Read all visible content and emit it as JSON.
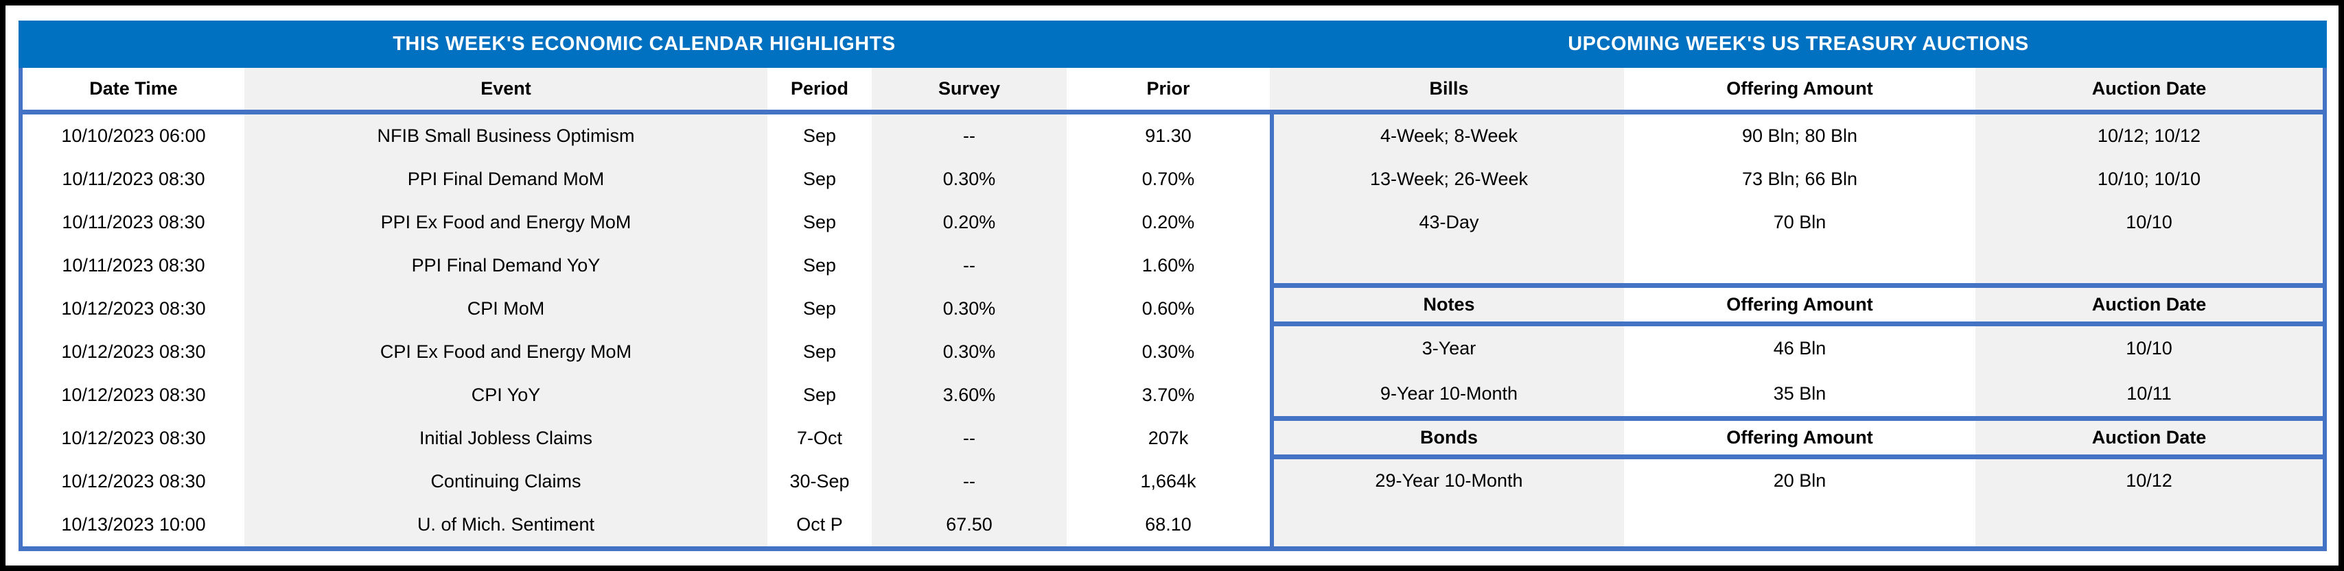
{
  "colors": {
    "title_bar_blue": "#0070C0",
    "accent_border_blue": "#4472C4",
    "alt_column_gray": "#F1F1F1",
    "text_black": "#000000",
    "title_text_white": "#FFFFFF"
  },
  "calendar": {
    "title": "THIS WEEK'S ECONOMIC CALENDAR HIGHLIGHTS",
    "columns": [
      "Date Time",
      "Event",
      "Period",
      "Survey",
      "Prior"
    ],
    "rows": [
      {
        "date": "10/10/2023 06:00",
        "event": "NFIB Small Business Optimism",
        "period": "Sep",
        "survey": "--",
        "prior": "91.30"
      },
      {
        "date": "10/11/2023 08:30",
        "event": "PPI Final Demand MoM",
        "period": "Sep",
        "survey": "0.30%",
        "prior": "0.70%"
      },
      {
        "date": "10/11/2023 08:30",
        "event": "PPI Ex Food and Energy MoM",
        "period": "Sep",
        "survey": "0.20%",
        "prior": "0.20%"
      },
      {
        "date": "10/11/2023 08:30",
        "event": "PPI Final Demand YoY",
        "period": "Sep",
        "survey": "--",
        "prior": "1.60%"
      },
      {
        "date": "10/12/2023 08:30",
        "event": "CPI MoM",
        "period": "Sep",
        "survey": "0.30%",
        "prior": "0.60%"
      },
      {
        "date": "10/12/2023 08:30",
        "event": "CPI Ex Food and Energy MoM",
        "period": "Sep",
        "survey": "0.30%",
        "prior": "0.30%"
      },
      {
        "date": "10/12/2023 08:30",
        "event": "CPI YoY",
        "period": "Sep",
        "survey": "3.60%",
        "prior": "3.70%"
      },
      {
        "date": "10/12/2023 08:30",
        "event": "Initial Jobless Claims",
        "period": "7-Oct",
        "survey": "--",
        "prior": "207k"
      },
      {
        "date": "10/12/2023 08:30",
        "event": "Continuing Claims",
        "period": "30-Sep",
        "survey": "--",
        "prior": "1,664k"
      },
      {
        "date": "10/13/2023 10:00",
        "event": "U. of Mich. Sentiment",
        "period": "Oct P",
        "survey": "67.50",
        "prior": "68.10"
      }
    ]
  },
  "auctions": {
    "title": "UPCOMING WEEK'S US TREASURY AUCTIONS",
    "bills": {
      "header": [
        "Bills",
        "Offering Amount",
        "Auction Date"
      ],
      "rows": [
        {
          "security": "4-Week; 8-Week",
          "amount": "90 Bln; 80 Bln",
          "date": "10/12; 10/12"
        },
        {
          "security": "13-Week; 26-Week",
          "amount": "73 Bln; 66 Bln",
          "date": "10/10; 10/10"
        },
        {
          "security": "43-Day",
          "amount": "70 Bln",
          "date": "10/10"
        }
      ]
    },
    "notes": {
      "header": [
        "Notes",
        "Offering Amount",
        "Auction Date"
      ],
      "rows": [
        {
          "security": "3-Year",
          "amount": "46 Bln",
          "date": "10/10"
        },
        {
          "security": "9-Year 10-Month",
          "amount": "35 Bln",
          "date": "10/11"
        }
      ]
    },
    "bonds": {
      "header": [
        "Bonds",
        "Offering Amount",
        "Auction Date"
      ],
      "rows": [
        {
          "security": "29-Year 10-Month",
          "amount": "20 Bln",
          "date": "10/12"
        }
      ]
    }
  }
}
